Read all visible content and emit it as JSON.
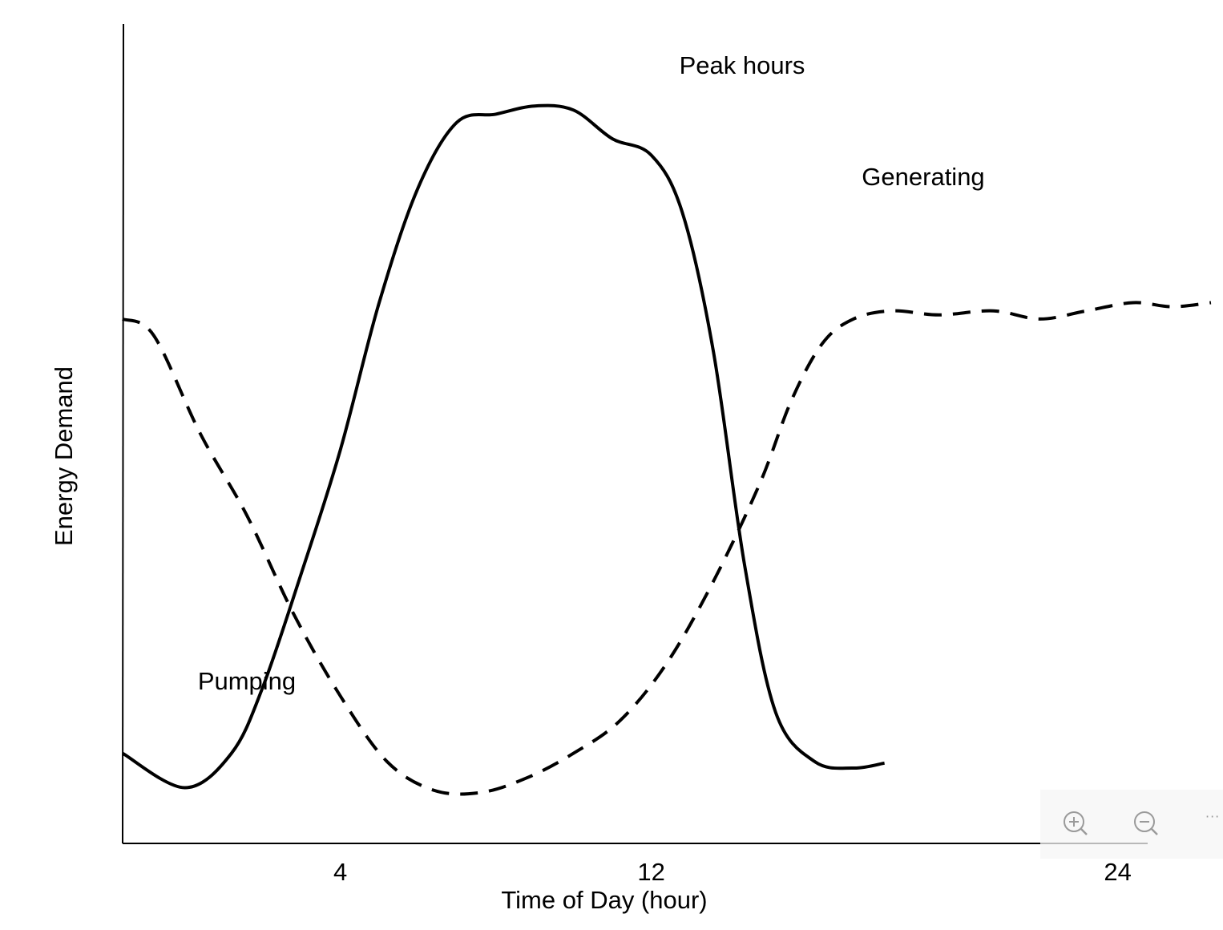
{
  "chart_data": {
    "type": "line",
    "title": "",
    "xlabel": "Time of Day (hour)",
    "ylabel": "Energy Demand",
    "xlim": [
      -1.6,
      26.4
    ],
    "ylim": [
      0,
      10
    ],
    "grid": false,
    "legend": "none",
    "x_ticks": [
      4,
      12,
      24
    ],
    "x_tick_labels": [
      "4",
      "12",
      "24"
    ],
    "series": [
      {
        "style": "solid",
        "color": "#000000",
        "points": [
          [
            -1.6,
            1.1
          ],
          [
            0.0,
            0.68
          ],
          [
            1.2,
            1.1
          ],
          [
            2.0,
            1.9
          ],
          [
            3.0,
            3.3
          ],
          [
            4.0,
            4.8
          ],
          [
            5.0,
            6.6
          ],
          [
            6.0,
            8.0
          ],
          [
            7.0,
            8.8
          ],
          [
            8.0,
            8.9
          ],
          [
            9.0,
            9.0
          ],
          [
            10.0,
            8.95
          ],
          [
            11.0,
            8.6
          ],
          [
            12.0,
            8.4
          ],
          [
            12.8,
            7.7
          ],
          [
            13.6,
            6.0
          ],
          [
            14.4,
            3.4
          ],
          [
            15.2,
            1.6
          ],
          [
            16.2,
            1.0
          ],
          [
            17.2,
            0.92
          ],
          [
            18.0,
            0.98
          ]
        ]
      },
      {
        "style": "dashed",
        "color": "#000000",
        "points": [
          [
            -1.6,
            6.4
          ],
          [
            -0.8,
            6.2
          ],
          [
            0.4,
            5.0
          ],
          [
            1.6,
            4.0
          ],
          [
            2.8,
            2.8
          ],
          [
            4.0,
            1.8
          ],
          [
            5.2,
            1.0
          ],
          [
            6.4,
            0.65
          ],
          [
            7.6,
            0.62
          ],
          [
            8.8,
            0.8
          ],
          [
            10.0,
            1.1
          ],
          [
            11.2,
            1.5
          ],
          [
            12.4,
            2.2
          ],
          [
            13.6,
            3.2
          ],
          [
            14.8,
            4.4
          ],
          [
            15.6,
            5.4
          ],
          [
            16.4,
            6.1
          ],
          [
            17.2,
            6.4
          ],
          [
            18.2,
            6.5
          ],
          [
            19.4,
            6.45
          ],
          [
            20.8,
            6.5
          ],
          [
            22.0,
            6.4
          ],
          [
            23.2,
            6.5
          ],
          [
            24.4,
            6.6
          ],
          [
            25.4,
            6.55
          ],
          [
            26.4,
            6.6
          ]
        ]
      }
    ],
    "annotations": {
      "peak": "Peak hours",
      "generating": "Generating",
      "pumping": "Pumping"
    }
  },
  "toolbar": {
    "zoom_in_icon": "zoom-in-icon",
    "zoom_out_icon": "zoom-out-icon",
    "more_label": "···"
  }
}
